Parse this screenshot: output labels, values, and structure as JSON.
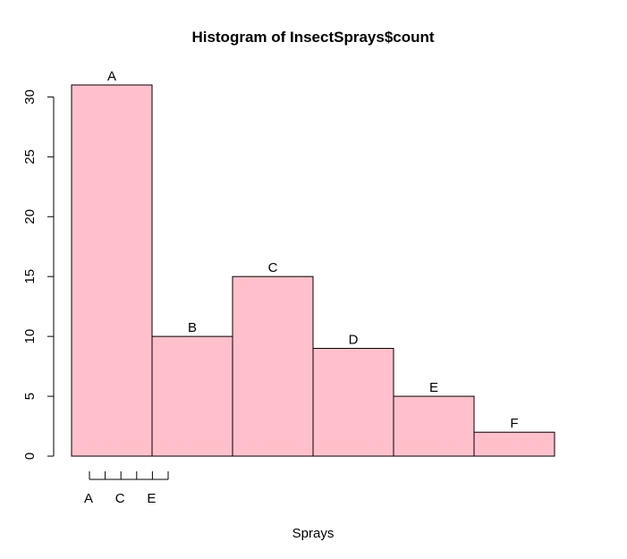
{
  "chart_data": {
    "type": "bar",
    "title": "Histogram of InsectSprays$count",
    "xlabel": "Sprays",
    "ylabel": "",
    "categories": [
      "A",
      "B",
      "C",
      "D",
      "E",
      "F"
    ],
    "values": [
      31,
      10,
      15,
      9,
      5,
      2
    ],
    "bar_labels": [
      "A",
      "B",
      "C",
      "D",
      "E",
      "F"
    ],
    "ylim": [
      0,
      31
    ],
    "y_ticks": [
      0,
      5,
      10,
      15,
      20,
      25,
      30
    ],
    "x_axis_ticks": 6,
    "x_axis_tick_labels": [
      "A",
      "C",
      "E"
    ],
    "grid": false,
    "bar_fill": "#ffc0cb",
    "bar_stroke": "#000000"
  }
}
